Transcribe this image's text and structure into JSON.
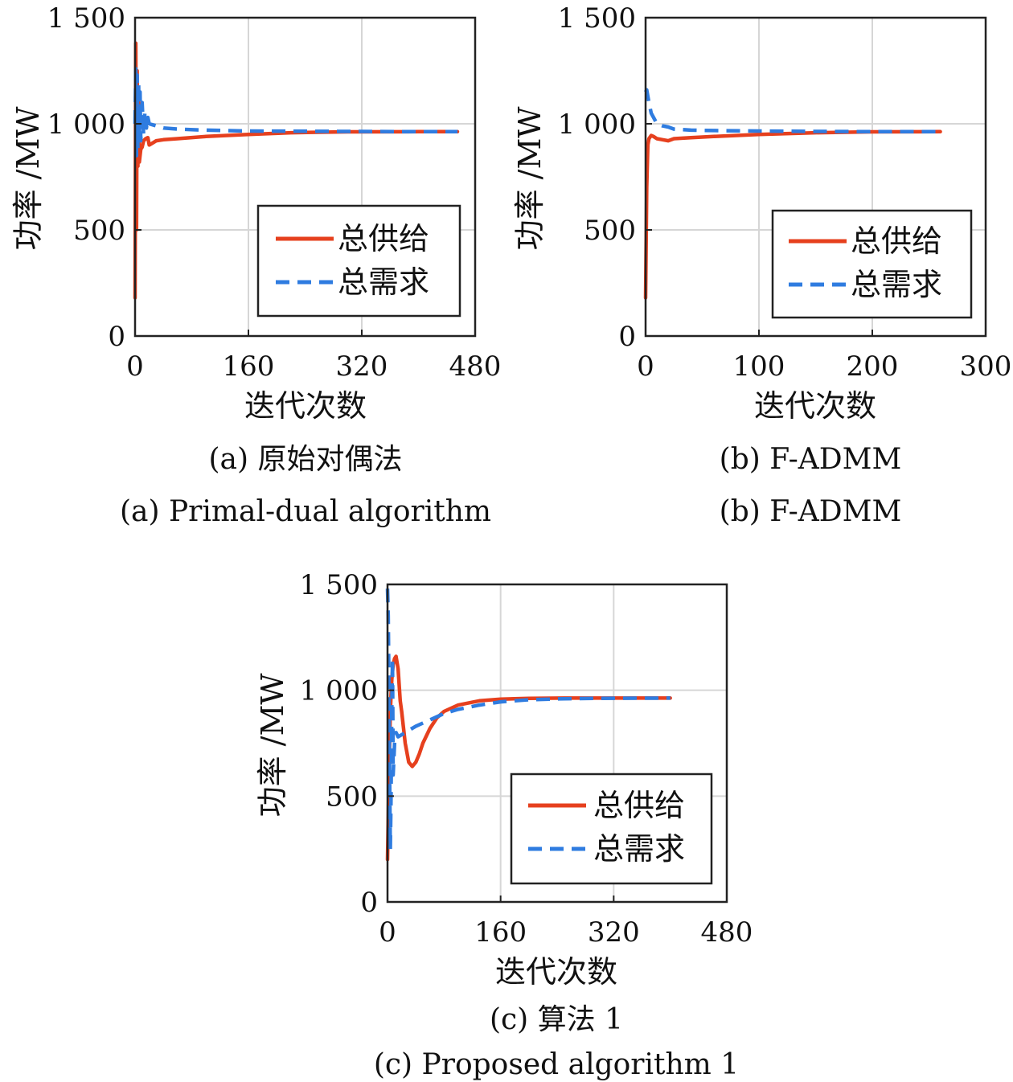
{
  "colors": {
    "supply": "#e6401e",
    "demand": "#2f7ce0"
  },
  "chart_data": [
    {
      "type": "line",
      "caption_cn": "(a) 原始对偶法",
      "caption_en": "(a) Primal-dual algorithm",
      "xlabel": "迭代次数",
      "ylabel": "功率 /MW",
      "xlim": [
        0,
        480
      ],
      "ylim": [
        0,
        1500
      ],
      "xticks": [
        "0",
        "160",
        "320",
        "480"
      ],
      "yticks": [
        "0",
        "500",
        "1 000",
        "1 500"
      ],
      "grid": true,
      "legend_position": "lower-right",
      "series": [
        {
          "name": "总供给",
          "style": "solid",
          "x": [
            0,
            1,
            2,
            3,
            4,
            5,
            6,
            8,
            10,
            12,
            15,
            18,
            20,
            25,
            30,
            40,
            60,
            100,
            160,
            220,
            300,
            400,
            455
          ],
          "y": [
            180,
            1380,
            500,
            1250,
            800,
            1150,
            820,
            880,
            890,
            920,
            930,
            935,
            900,
            910,
            920,
            925,
            930,
            940,
            950,
            958,
            962,
            963,
            963
          ]
        },
        {
          "name": "总需求",
          "style": "dashed",
          "x": [
            0,
            1,
            2,
            3,
            4,
            5,
            6,
            7,
            8,
            10,
            12,
            14,
            16,
            18,
            20,
            25,
            30,
            40,
            60,
            100,
            160,
            220,
            300,
            400,
            455
          ],
          "y": [
            1000,
            1260,
            850,
            1230,
            880,
            1200,
            900,
            1150,
            920,
            1100,
            950,
            1060,
            980,
            1030,
            1000,
            995,
            990,
            980,
            975,
            970,
            966,
            965,
            964,
            963,
            963
          ]
        }
      ]
    },
    {
      "type": "line",
      "caption_cn": "(b) F-ADMM",
      "caption_en": "(b) F-ADMM",
      "xlabel": "迭代次数",
      "ylabel": "功率 /MW",
      "xlim": [
        0,
        300
      ],
      "ylim": [
        0,
        1500
      ],
      "xticks": [
        "0",
        "100",
        "200",
        "300"
      ],
      "yticks": [
        "0",
        "500",
        "1 000",
        "1 500"
      ],
      "grid": true,
      "legend_position": "lower-right",
      "series": [
        {
          "name": "总供给",
          "style": "solid",
          "x": [
            0,
            1,
            2,
            3,
            5,
            7,
            10,
            15,
            20,
            25,
            40,
            60,
            100,
            150,
            200,
            260
          ],
          "y": [
            180,
            700,
            900,
            930,
            945,
            940,
            930,
            925,
            920,
            930,
            935,
            940,
            950,
            958,
            962,
            963
          ]
        },
        {
          "name": "总需求",
          "style": "dashed",
          "x": [
            0,
            1,
            3,
            5,
            8,
            10,
            15,
            20,
            25,
            40,
            60,
            100,
            150,
            200,
            260
          ],
          "y": [
            1150,
            1160,
            1100,
            1050,
            1020,
            1000,
            990,
            985,
            975,
            970,
            968,
            966,
            964,
            963,
            963
          ]
        }
      ]
    },
    {
      "type": "line",
      "caption_cn": "(c) 算法 1",
      "caption_en": "(c) Proposed algorithm 1",
      "xlabel": "迭代次数",
      "ylabel": "功率 /MW",
      "xlim": [
        0,
        480
      ],
      "ylim": [
        0,
        1500
      ],
      "xticks": [
        "0",
        "160",
        "320",
        "480"
      ],
      "yticks": [
        "0",
        "500",
        "1 000",
        "1 500"
      ],
      "grid": true,
      "legend_position": "lower-right",
      "series": [
        {
          "name": "总供给",
          "style": "solid",
          "x": [
            0,
            2,
            4,
            6,
            8,
            10,
            12,
            15,
            18,
            20,
            25,
            30,
            35,
            40,
            45,
            50,
            60,
            70,
            80,
            100,
            130,
            160,
            200,
            250,
            300,
            400
          ],
          "y": [
            200,
            600,
            900,
            1050,
            1120,
            1150,
            1160,
            1100,
            950,
            900,
            750,
            660,
            640,
            660,
            700,
            750,
            820,
            870,
            900,
            930,
            950,
            958,
            962,
            963,
            963,
            963
          ]
        },
        {
          "name": "总需求",
          "style": "dashed",
          "x": [
            0,
            1,
            2,
            3,
            4,
            5,
            6,
            7,
            8,
            10,
            12,
            15,
            20,
            25,
            30,
            40,
            50,
            60,
            80,
            100,
            130,
            160,
            200,
            250,
            300,
            400
          ],
          "y": [
            1480,
            1350,
            1000,
            600,
            250,
            500,
            900,
            1150,
            600,
            750,
            800,
            780,
            790,
            800,
            810,
            830,
            845,
            860,
            890,
            910,
            930,
            945,
            955,
            960,
            962,
            963
          ]
        }
      ]
    }
  ]
}
